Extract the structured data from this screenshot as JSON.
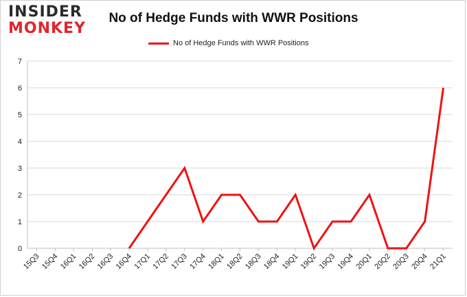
{
  "logo": {
    "line1": "INSIDER",
    "line2": "MONKEY"
  },
  "colors": {
    "series": "#ee1111",
    "grid": "#d9d9d9",
    "axis": "#bfbfbf",
    "logo_dark": "#2b2b2b",
    "logo_red": "#e0262b"
  },
  "chart_data": {
    "type": "line",
    "title": "No of Hedge Funds with WWR Positions",
    "xlabel": "",
    "ylabel": "",
    "legend_position": "top-center",
    "grid": true,
    "ylim": [
      0,
      7
    ],
    "yticks": [
      0,
      1,
      2,
      3,
      4,
      5,
      6,
      7
    ],
    "categories": [
      "15Q3",
      "15Q4",
      "16Q1",
      "16Q2",
      "16Q3",
      "16Q4",
      "17Q1",
      "17Q2",
      "17Q3",
      "17Q4",
      "18Q1",
      "18Q2",
      "18Q3",
      "18Q4",
      "19Q1",
      "19Q2",
      "19Q3",
      "19Q4",
      "20Q1",
      "20Q2",
      "20Q3",
      "20Q4",
      "21Q1"
    ],
    "series": [
      {
        "name": "No of Hedge Funds with WWR Positions",
        "values": [
          null,
          null,
          null,
          null,
          null,
          0,
          1,
          2,
          3,
          1,
          2,
          2,
          1,
          1,
          2,
          0,
          1,
          1,
          2,
          0,
          0,
          1,
          6
        ]
      }
    ]
  }
}
